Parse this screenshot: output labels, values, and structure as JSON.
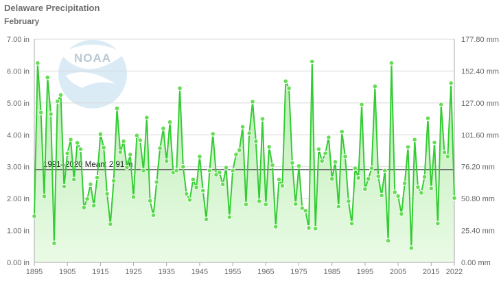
{
  "chart_data": {
    "type": "line",
    "title": "Delaware Precipitation",
    "subtitle": "February",
    "x_start": 1895,
    "x_end": 2022,
    "xlim": [
      1895,
      2022
    ],
    "ylim": [
      0,
      7
    ],
    "x_ticks": [
      1895,
      1905,
      1915,
      1925,
      1935,
      1945,
      1955,
      1965,
      1975,
      1985,
      1995,
      2005,
      2015,
      2022
    ],
    "y_ticks_left": [
      "0.00 in",
      "1.00 in",
      "2.00 in",
      "3.00 in",
      "4.00 in",
      "5.00 in",
      "6.00 in",
      "7.00 in"
    ],
    "y_ticks_right": [
      "0.00 mm",
      "25.40 mm",
      "50.80 mm",
      "76.20 mm",
      "101.60 mm",
      "127.00 mm",
      "152.40 mm",
      "177.80 mm"
    ],
    "mean": {
      "label": "1991–2020 Mean: 2.91 in",
      "value": 2.91
    },
    "grid": true,
    "colors": {
      "line": "#33cc33",
      "marker": "#66dd55",
      "fill_top": "#b8ecb0",
      "fill_bottom": "#eafbe6",
      "mean_line": "#555555"
    },
    "series": [
      {
        "values": [
          1.45,
          6.25,
          4.7,
          2.07,
          5.8,
          4.65,
          0.6,
          5.05,
          5.25,
          2.38,
          3.42,
          3.85,
          2.6,
          3.75,
          3.55,
          1.72,
          1.99,
          2.45,
          1.78,
          2.66,
          4.02,
          3.6,
          2.15,
          1.2,
          2.56,
          4.83,
          3.46,
          3.8,
          2.98,
          3.38,
          2.05,
          3.98,
          3.83,
          2.88,
          4.54,
          1.93,
          1.48,
          2.52,
          3.58,
          4.2,
          3.18,
          4.4,
          2.82,
          2.88,
          5.46,
          3.0,
          2.15,
          1.96,
          2.6,
          2.35,
          3.32,
          2.25,
          1.35,
          2.88,
          4.03,
          2.75,
          2.82,
          2.45,
          2.97,
          1.42,
          2.88,
          3.38,
          3.52,
          4.25,
          1.82,
          4.05,
          5.04,
          3.8,
          1.92,
          4.5,
          1.82,
          3.62,
          3.05,
          1.12,
          2.6,
          2.4,
          5.68,
          5.46,
          3.12,
          1.83,
          3.02,
          1.7,
          1.62,
          1.08,
          6.3,
          1.06,
          3.55,
          3.18,
          3.42,
          3.92,
          2.62,
          3.15,
          1.75,
          4.1,
          3.32,
          1.92,
          1.22,
          2.95,
          2.65,
          4.95,
          2.3,
          2.62,
          2.95,
          5.52,
          2.7,
          2.1,
          2.88,
          0.68,
          6.25,
          2.2,
          2.08,
          1.52,
          2.48,
          3.62,
          0.45,
          3.85,
          2.36,
          2.18,
          2.68,
          4.52,
          2.32,
          3.76,
          1.22,
          4.95,
          3.45,
          3.32,
          5.62,
          2.02
        ]
      }
    ]
  }
}
